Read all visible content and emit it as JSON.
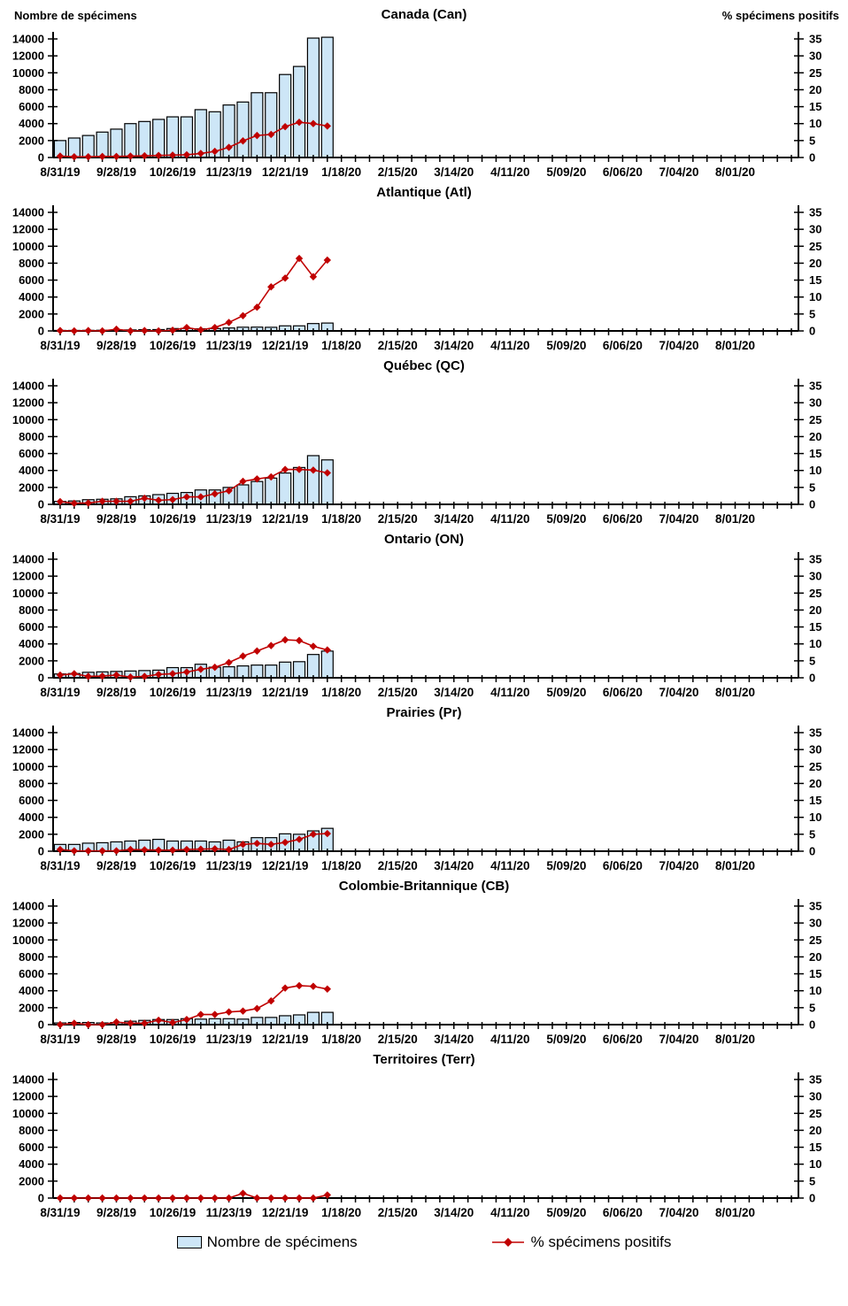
{
  "header": {
    "left_label": "Nombre de spécimens",
    "right_label": "% spécimens positifs"
  },
  "legend": {
    "specimens_label": "Nombre de spécimens",
    "positive_label": "% spécimens positifs"
  },
  "colors": {
    "bar_fill": "#CDE6F7",
    "bar_stroke": "#000000",
    "line_color": "#C00000",
    "axis_color": "#000000"
  },
  "axes": {
    "left_ticks": [
      0,
      2000,
      4000,
      6000,
      8000,
      10000,
      12000,
      14000
    ],
    "left_max": 14000,
    "right_ticks": [
      0,
      5,
      10,
      15,
      20,
      25,
      30,
      35
    ],
    "right_max": 35,
    "x_tick_labels": [
      "8/31/19",
      "9/28/19",
      "10/26/19",
      "11/23/19",
      "12/21/19",
      "1/18/20",
      "2/15/20",
      "3/14/20",
      "4/11/20",
      "5/09/20",
      "6/06/20",
      "7/04/20",
      "8/01/20"
    ],
    "total_weeks": 53,
    "label_every": 4
  },
  "categories": [
    "8/31/19",
    "9/7/19",
    "9/14/19",
    "9/21/19",
    "9/28/19",
    "10/5/19",
    "10/12/19",
    "10/19/19",
    "10/26/19",
    "11/2/19",
    "11/9/19",
    "11/16/19",
    "11/23/19",
    "11/30/19",
    "12/7/19",
    "12/14/19",
    "12/21/19",
    "12/28/19",
    "1/4/20",
    "1/11/20"
  ],
  "chart_data": [
    {
      "type": "bar+line",
      "title": "Canada (Can)",
      "ylabel_left": "Nombre de spécimens",
      "ylabel_right": "% spécimens positifs",
      "ylim_left": [
        0,
        14000
      ],
      "ylim_right": [
        0,
        35
      ],
      "series": [
        {
          "name": "Nombre de spécimens",
          "axis": "left",
          "values": [
            2000,
            2300,
            2600,
            3000,
            3350,
            4000,
            4250,
            4500,
            4800,
            4800,
            5650,
            5400,
            6200,
            6550,
            7650,
            7650,
            9800,
            10750,
            14100,
            14200
          ]
        },
        {
          "name": "% spécimens positifs",
          "axis": "right",
          "values": [
            0.4,
            0.2,
            0.2,
            0.3,
            0.3,
            0.4,
            0.5,
            0.6,
            0.7,
            0.8,
            1.2,
            1.8,
            3.0,
            4.9,
            6.5,
            6.8,
            9.1,
            10.4,
            10.0,
            9.3
          ]
        }
      ]
    },
    {
      "type": "bar+line",
      "title": "Atlantique (Atl)",
      "ylim_left": [
        0,
        14000
      ],
      "ylim_right": [
        0,
        35
      ],
      "series": [
        {
          "name": "Nombre de spécimens",
          "axis": "left",
          "values": [
            60,
            60,
            70,
            80,
            100,
            120,
            150,
            160,
            280,
            300,
            250,
            280,
            350,
            440,
            450,
            430,
            600,
            600,
            870,
            930
          ]
        },
        {
          "name": "% spécimens positifs",
          "axis": "right",
          "values": [
            0.1,
            0,
            0.1,
            0,
            0.5,
            0,
            0.1,
            0,
            0.2,
            1.0,
            0.3,
            1.0,
            2.5,
            4.5,
            7.0,
            13.0,
            15.6,
            21.4,
            16.0,
            20.9
          ]
        }
      ]
    },
    {
      "type": "bar+line",
      "title": "Québec (QC)",
      "ylim_left": [
        0,
        14000
      ],
      "ylim_right": [
        0,
        35
      ],
      "series": [
        {
          "name": "Nombre de spécimens",
          "axis": "left",
          "values": [
            350,
            400,
            550,
            600,
            650,
            900,
            1000,
            1150,
            1300,
            1400,
            1700,
            1700,
            2000,
            2300,
            2700,
            3100,
            3700,
            4350,
            5750,
            5250
          ]
        },
        {
          "name": "% spécimens positifs",
          "axis": "right",
          "values": [
            0.8,
            0.3,
            0.4,
            0.9,
            0.9,
            0.9,
            1.8,
            1.2,
            1.4,
            2.2,
            2.2,
            3.1,
            4.0,
            6.8,
            7.5,
            8.1,
            10.3,
            10.3,
            10.1,
            9.3
          ]
        }
      ]
    },
    {
      "type": "bar+line",
      "title": "Ontario (ON)",
      "ylim_left": [
        0,
        14000
      ],
      "ylim_right": [
        0,
        35
      ],
      "series": [
        {
          "name": "Nombre de spécimens",
          "axis": "left",
          "values": [
            450,
            500,
            650,
            700,
            750,
            800,
            850,
            900,
            1200,
            1200,
            1600,
            1250,
            1300,
            1400,
            1500,
            1500,
            1850,
            1900,
            2750,
            3150
          ]
        },
        {
          "name": "% spécimens positifs",
          "axis": "right",
          "values": [
            0.8,
            1.2,
            0.4,
            0.5,
            0.8,
            0.2,
            0.4,
            1.0,
            1.2,
            1.7,
            2.5,
            3.1,
            4.5,
            6.4,
            7.9,
            9.5,
            11.2,
            11.0,
            9.3,
            8.2
          ]
        }
      ]
    },
    {
      "type": "bar+line",
      "title": "Prairies (Pr)",
      "ylim_left": [
        0,
        14000
      ],
      "ylim_right": [
        0,
        35
      ],
      "series": [
        {
          "name": "Nombre de spécimens",
          "axis": "left",
          "values": [
            800,
            800,
            950,
            1000,
            1100,
            1200,
            1300,
            1400,
            1200,
            1200,
            1200,
            1100,
            1300,
            1100,
            1600,
            1600,
            2050,
            2000,
            2400,
            2700
          ]
        },
        {
          "name": "% spécimens positifs",
          "axis": "right",
          "values": [
            0.5,
            0.1,
            0.1,
            0.1,
            0.1,
            0.5,
            0.4,
            0.3,
            0.3,
            0.5,
            0.6,
            0.7,
            0.5,
            2.0,
            2.3,
            2.0,
            2.6,
            3.5,
            5.0,
            5.2
          ]
        }
      ]
    },
    {
      "type": "bar+line",
      "title": "Colombie-Britannique (CB)",
      "ylim_left": [
        0,
        14000
      ],
      "ylim_right": [
        0,
        35
      ],
      "series": [
        {
          "name": "Nombre de spécimens",
          "axis": "left",
          "values": [
            200,
            250,
            250,
            200,
            250,
            400,
            500,
            600,
            600,
            700,
            650,
            700,
            700,
            650,
            850,
            850,
            1050,
            1150,
            1450,
            1450
          ]
        },
        {
          "name": "% spécimens positifs",
          "axis": "right",
          "values": [
            0,
            0.4,
            0,
            0,
            0.75,
            0.4,
            0.4,
            1.3,
            0.6,
            1.5,
            3.0,
            3.0,
            3.75,
            4.0,
            4.75,
            7.0,
            10.8,
            11.5,
            11.3,
            10.5
          ]
        }
      ]
    },
    {
      "type": "bar+line",
      "title": "Territoires (Terr)",
      "ylim_left": [
        0,
        14000
      ],
      "ylim_right": [
        0,
        35
      ],
      "series": [
        {
          "name": "Nombre de spécimens",
          "axis": "left",
          "values": [
            0,
            0,
            0,
            0,
            0,
            0,
            0,
            0,
            0,
            0,
            0,
            0,
            0,
            0,
            0,
            0,
            0,
            0,
            0,
            0
          ]
        },
        {
          "name": "% spécimens positifs",
          "axis": "right",
          "values": [
            0,
            0,
            0,
            0,
            0,
            0,
            0,
            0,
            0,
            0,
            0,
            0,
            0,
            1.4,
            0,
            0,
            0,
            0,
            0,
            0.9
          ]
        }
      ]
    }
  ]
}
